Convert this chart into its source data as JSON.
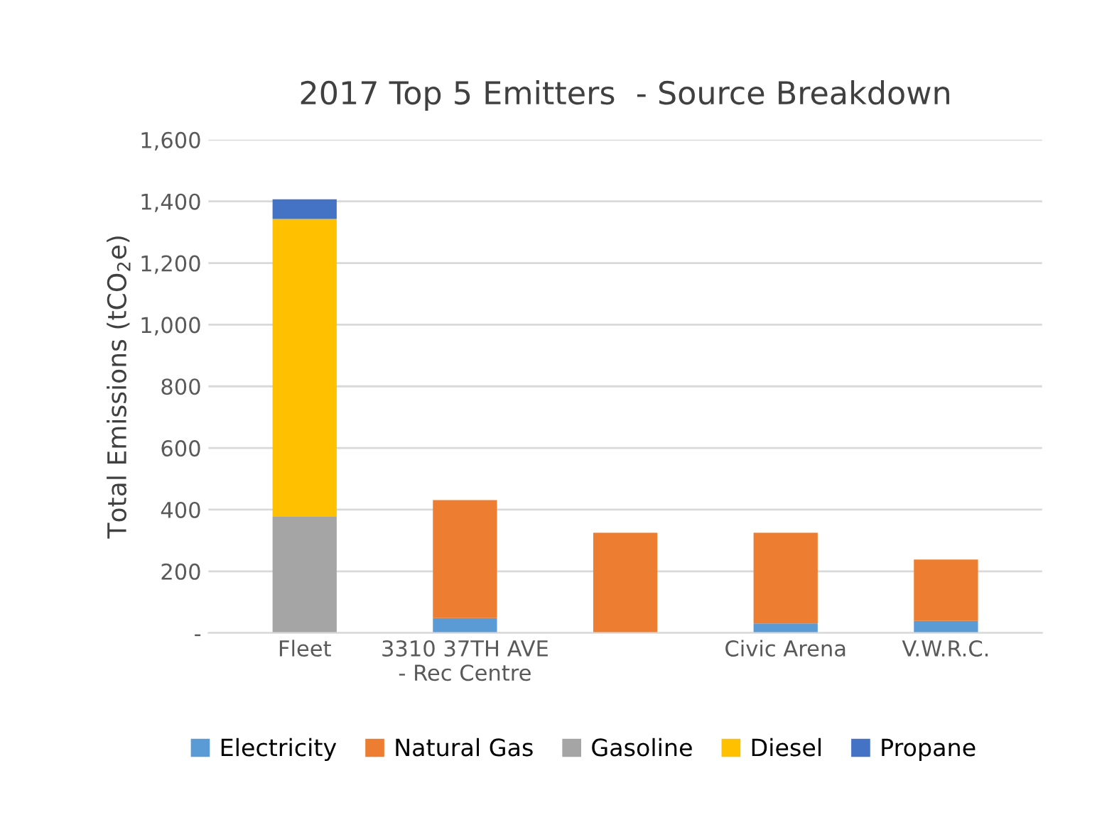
{
  "chart_data": {
    "type": "bar",
    "title": "2017 Top 5 Emitters  - Source Breakdown",
    "ylabel": "Total Emissions (tCO$_{2}$e)",
    "categories": [
      "Fleet",
      "3310 37TH AVE - Rec Centre",
      null,
      "Civic Arena",
      "V.W.R.C."
    ],
    "stacked": true,
    "series": [
      {
        "name": "Electricity",
        "color": "#5b9bd5",
        "values": [
          0,
          48,
          0,
          31,
          39
        ]
      },
      {
        "name": "Natural Gas",
        "color": "#ed7d31",
        "values": [
          0,
          383,
          325,
          294,
          199
        ]
      },
      {
        "name": "Gasoline",
        "color": "#a5a5a5",
        "values": [
          377,
          0,
          0,
          0,
          0
        ]
      },
      {
        "name": "Diesel",
        "color": "#ffc000",
        "values": [
          966,
          0,
          0,
          0,
          0
        ]
      },
      {
        "name": "Propane",
        "color": "#4472c4",
        "values": [
          64,
          0,
          0,
          0,
          0
        ]
      }
    ],
    "ylim": [
      0,
      1600
    ],
    "yticks": [
      {
        "value": 0,
        "label": "-"
      },
      {
        "value": 200,
        "label": "200"
      },
      {
        "value": 400,
        "label": "400"
      },
      {
        "value": 600,
        "label": "600"
      },
      {
        "value": 800,
        "label": "800"
      },
      {
        "value": 1000,
        "label": "1,000"
      },
      {
        "value": 1200,
        "label": "1,200"
      },
      {
        "value": 1400,
        "label": "1,400"
      },
      {
        "value": 1600,
        "label": "1,600"
      }
    ],
    "grid": "y",
    "legend": "bottom"
  }
}
